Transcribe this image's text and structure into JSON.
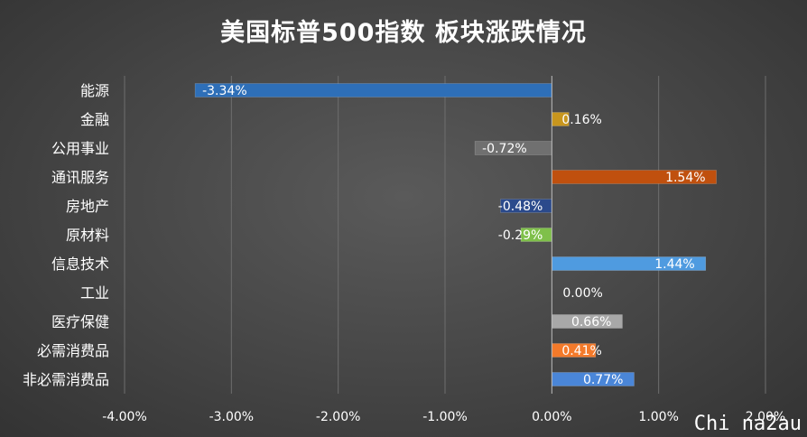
{
  "chart_data": {
    "type": "bar",
    "orientation": "horizontal",
    "title": "美国标普500指数 板块涨跌情况",
    "categories": [
      "能源",
      "金融",
      "公用事业",
      "通讯服务",
      "房地产",
      "原材料",
      "信息技术",
      "工业",
      "医疗保健",
      "必需消费品",
      "非必需消费品"
    ],
    "values": [
      -3.34,
      0.16,
      -0.72,
      1.54,
      -0.48,
      -0.29,
      1.44,
      0.0,
      0.66,
      0.41,
      0.77
    ],
    "data_labels": [
      "-3.34%",
      "0.16%",
      "-0.72%",
      "1.54%",
      "-0.48%",
      "-0.29%",
      "1.44%",
      "0.00%",
      "0.66%",
      "0.41%",
      "0.77%"
    ],
    "colors": [
      "#2e6fb8",
      "#c8961e",
      "#707070",
      "#c0500e",
      "#2b4a8c",
      "#7fc04a",
      "#4f9be0",
      "#888888",
      "#a8a8a8",
      "#f47a2a",
      "#4a86d8"
    ],
    "xlim": [
      -4,
      2
    ],
    "xticks": [
      -4,
      -3,
      -2,
      -1,
      0,
      1,
      2
    ],
    "xtick_labels": [
      "-4.00%",
      "-3.00%",
      "-2.00%",
      "-1.00%",
      "0.00%",
      "1.00%",
      "2.00%"
    ],
    "grid": true,
    "legend": "none"
  },
  "watermark": "Chi na2au"
}
